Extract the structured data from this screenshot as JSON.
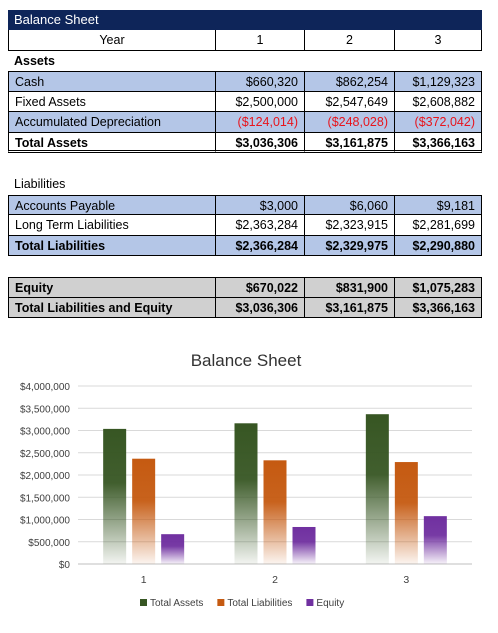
{
  "sheet": {
    "title": "Balance Sheet",
    "header": {
      "label": "Year",
      "years": [
        "1",
        "2",
        "3"
      ]
    },
    "assets_heading": "Assets",
    "assets": [
      {
        "label": "Cash",
        "values": [
          "$660,320",
          "$862,254",
          "$1,129,323"
        ]
      },
      {
        "label": "Fixed Assets",
        "values": [
          "$2,500,000",
          "$2,547,649",
          "$2,608,882"
        ]
      },
      {
        "label": "Accumulated Depreciation",
        "values": [
          "($124,014)",
          "($248,028)",
          "($372,042)"
        ]
      }
    ],
    "total_assets": {
      "label": "Total Assets",
      "values": [
        "$3,036,306",
        "$3,161,875",
        "$3,366,163"
      ]
    },
    "liabilities_heading": "Liabilities",
    "liabilities": [
      {
        "label": "Accounts Payable",
        "values": [
          "$3,000",
          "$6,060",
          "$9,181"
        ]
      },
      {
        "label": "Long Term Liabilities",
        "values": [
          "$2,363,284",
          "$2,323,915",
          "$2,281,699"
        ]
      }
    ],
    "total_liabilities": {
      "label": "Total Liabilities",
      "values": [
        "$2,366,284",
        "$2,329,975",
        "$2,290,880"
      ]
    },
    "equity": {
      "label": "Equity",
      "values": [
        "$670,022",
        "$831,900",
        "$1,075,283"
      ]
    },
    "total_le": {
      "label": "Total Liabilities and Equity",
      "values": [
        "$3,036,306",
        "$3,161,875",
        "$3,366,163"
      ]
    }
  },
  "colors": {
    "header_bg": "#0e2559",
    "band_blue": "#b4c6e7",
    "band_gray": "#d0d0d0",
    "negative": "#e8141c"
  },
  "chart_data": {
    "type": "bar",
    "title": "Balance Sheet",
    "categories": [
      "1",
      "2",
      "3"
    ],
    "series": [
      {
        "name": "Total Assets",
        "color": "#375623",
        "values": [
          3036306,
          3161875,
          3366163
        ]
      },
      {
        "name": "Total Liabilities",
        "color": "#c55a11",
        "values": [
          2366284,
          2329975,
          2290880
        ]
      },
      {
        "name": "Equity",
        "color": "#7030a0",
        "values": [
          670022,
          831900,
          1075283
        ]
      }
    ],
    "ylim": [
      0,
      4000000
    ],
    "ytick_labels": [
      "$0",
      "$500,000",
      "$1,000,000",
      "$1,500,000",
      "$2,000,000",
      "$2,500,000",
      "$3,000,000",
      "$3,500,000",
      "$4,000,000"
    ],
    "grid": true,
    "legend": "bottom"
  }
}
